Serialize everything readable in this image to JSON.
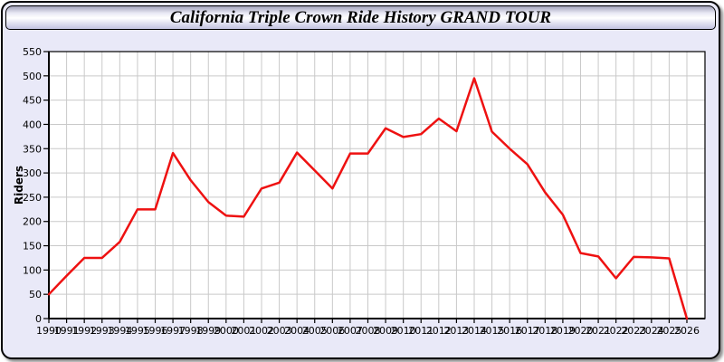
{
  "window": {
    "title": "California Triple Crown Ride History GRAND TOUR"
  },
  "chart_data": {
    "type": "line",
    "title": "California Triple Crown Ride History GRAND TOUR",
    "xlabel": "",
    "ylabel": "Riders",
    "x": [
      1990,
      1991,
      1992,
      1993,
      1994,
      1995,
      1996,
      1997,
      1998,
      1999,
      2000,
      2001,
      2002,
      2003,
      2004,
      2005,
      2006,
      2007,
      2008,
      2009,
      2010,
      2011,
      2012,
      2013,
      2014,
      2015,
      2016,
      2017,
      2018,
      2019,
      2020,
      2021,
      2022,
      2023,
      2024,
      2025,
      2026
    ],
    "series": [
      {
        "name": "Riders",
        "color": "#ee1111",
        "values": [
          50,
          88,
          125,
          125,
          158,
          225,
          225,
          341,
          285,
          240,
          212,
          210,
          268,
          280,
          342,
          305,
          268,
          340,
          340,
          392,
          374,
          380,
          412,
          386,
          495,
          385,
          350,
          318,
          260,
          214,
          135,
          128,
          83,
          127,
          126,
          124,
          0
        ]
      }
    ],
    "ylim": [
      0,
      550
    ],
    "ytick_step": 50,
    "grid": true,
    "legend": "none",
    "colors": {
      "grid_color": "#c9c9c9",
      "axis_color": "#000000",
      "tick_label_color": "#000000",
      "plot_background": "#ffffff",
      "window_background": "#e9e9f8"
    }
  }
}
